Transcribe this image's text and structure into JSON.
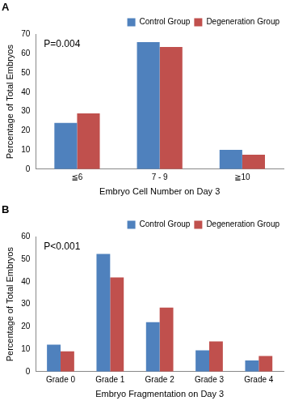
{
  "chart_data": [
    {
      "type": "bar",
      "title": "A",
      "annotations": [
        "P=0.004"
      ],
      "x_label": "Embryo Cell Number on Day 3",
      "y_label": "Percentage of Total Embryos",
      "categories": [
        "≦6",
        "7 - 9",
        "≧10"
      ],
      "series": [
        {
          "name": "Control Group",
          "color": "#4f81bd",
          "values": [
            24,
            66,
            10
          ]
        },
        {
          "name": "Degeneration Group",
          "color": "#c0504d",
          "values": [
            29,
            63.5,
            7.5
          ]
        }
      ],
      "ylim": [
        0,
        70
      ],
      "yticks": [
        0,
        10,
        20,
        30,
        40,
        50,
        60,
        70
      ],
      "grid": false,
      "legend": "upper right"
    },
    {
      "type": "bar",
      "title": "B",
      "annotations": [
        "P<0.001"
      ],
      "x_label": "Embryo Fragmentation on Day 3",
      "y_label": "Percentage of Total Embryos",
      "categories": [
        "Grade 0",
        "Grade 1",
        "Grade 2",
        "Grade 3",
        "Grade 4"
      ],
      "series": [
        {
          "name": "Control Group",
          "color": "#4f81bd",
          "values": [
            12,
            52.5,
            22,
            9.5,
            5
          ]
        },
        {
          "name": "Degeneration Group",
          "color": "#c0504d",
          "values": [
            9,
            42,
            28.5,
            13.5,
            7
          ]
        }
      ],
      "ylim": [
        0,
        60
      ],
      "yticks": [
        0,
        10,
        20,
        30,
        40,
        50,
        60
      ],
      "grid": false,
      "legend": "upper right"
    }
  ]
}
